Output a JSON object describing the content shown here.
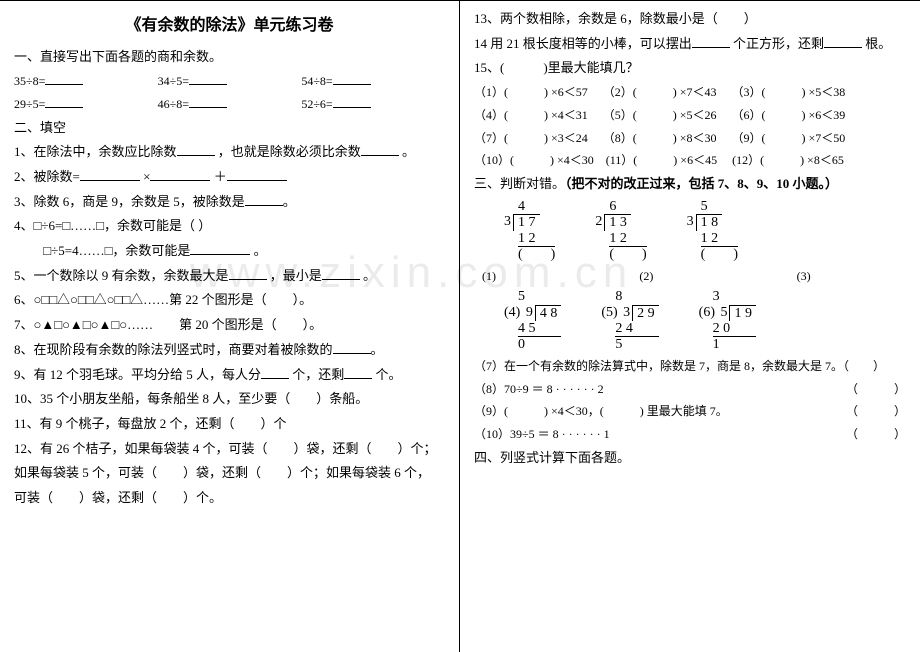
{
  "left": {
    "title": "《有余数的除法》单元练习卷",
    "sec1": "一、直接写出下面各题的商和余数。",
    "eq1a": "35÷8=",
    "eq1b": "34÷5=",
    "eq1c": "54÷8=",
    "eq2a": "29÷5=",
    "eq2b": "46÷8=",
    "eq2c": "52÷6=",
    "sec2": "二、填空",
    "p1": "1、在除法中，余数应比除数",
    "p1b": "，也就是除数必须比余数",
    "p1c": "。",
    "p2a": "2、被除数=",
    "p2b": "×",
    "p2c": "＋",
    "p3": "3、除数 6，商是 9，余数是 5，被除数是",
    "p4a": "4、□÷6=□……□，余数可能是（",
    "p4b": "）",
    "p4c": "　　 □÷5=4……□，余数可能是",
    "p4d": "。",
    "p5a": "5、一个数除以 9 有余数，余数最大是",
    "p5b": "，最小是",
    "p5c": "。",
    "p6": "6、○□□△○□□△○□□△……第 22 个图形是（　　）。",
    "p7": "7、○▲□○▲□○▲□○……　　第 20 个图形是（　　）。",
    "p8": "8、在现阶段有余数的除法列竖式时，商要对着被除数的",
    "p9a": "9、有 12 个羽毛球。平均分给 5 人，每人分",
    "p9b": "个，还剩",
    "p9c": "个。",
    "p10": "10、35 个小朋友坐船，每条船坐 8 人，至少要（　　）条船。",
    "p11": "11、有 9 个桃子，每盘放 2 个，还剩（　　）个",
    "p12a": "12、有 26 个桔子，如果每袋装 4 个，可装（　　）袋，还剩（　　）个；",
    "p12b": "如果每袋装 5 个，可装（　　）袋，还剩（　　）个；如果每袋装 6 个，",
    "p12c": "可装（　　）袋，还剩（　　）个。"
  },
  "right": {
    "p13": "13、两个数相除，余数是 6，除数最小是（　　）",
    "p14a": "14 用 21 根长度相等的小棒，可以摆出",
    "p14b": "个正方形，还剩",
    "p14c": "根。",
    "p15": "15、(　　　)里最大能填几？",
    "r1": "（1）(　　　) ×6＜57　 （2）(　　　) ×7＜43　 （3）(　　　) ×5＜38",
    "r2": "（4）(　　　) ×4＜31　 （5）(　　　) ×5＜26　 （6）(　　　) ×6＜39",
    "r3": "（7）(　　　) ×3＜24　 （8）(　　　) ×8＜30　 （9）(　　　) ×7＜50",
    "r4": "（10）(　　　) ×4＜30　(11）(　　　) ×6＜45　 (12）(　　　) ×8＜65",
    "sec3a": "三、判断对错。",
    "sec3b": "（把不对的改正过来，包括 7、8、9、10 小题。）",
    "ld1": {
      "q": "4",
      "div": "3",
      "num": "1 7",
      "sub": "1 2",
      "res": "(　　)"
    },
    "ld2": {
      "q": "6",
      "div": "2",
      "num": "1 3",
      "sub": "1 2",
      "res": "(　　)"
    },
    "ld3": {
      "q": "5",
      "div": "3",
      "num": "1 8",
      "sub": "1 2",
      "res": "(　　)"
    },
    "lbl1": "(1)",
    "lbl2": "(2)",
    "lbl3": "(3)",
    "ld4": {
      "q": "5",
      "div": "9",
      "num": "4 8",
      "sub": "4 5",
      "res": "0"
    },
    "ld5": {
      "q": "8",
      "div": "3",
      "num": "2 9",
      "sub": "2 4",
      "res": "5"
    },
    "ld6": {
      "q": "3",
      "div": "5",
      "num": "1 9",
      "sub": "2 0",
      "res": "1"
    },
    "lbl4": "(4)",
    "lbl5": "(5)",
    "lbl6": "(6)",
    "p7r": "（7）在一个有余数的除法算式中，除数是 7，商是 8，余数最大是 7。（　　）",
    "p8r": "（8）70÷9 ＝ 8 · · · · · · 2",
    "p9r": "（9）(　　　) ×4＜30，(　　　) 里最大能填 7。",
    "p10r": "（10）39÷5 ＝ 8 · · · · · · 1",
    "tail8": "（　　　）",
    "tail9": "（　　　）",
    "tail10": "（　　　）",
    "sec4": "四、列竖式计算下面各题。"
  }
}
